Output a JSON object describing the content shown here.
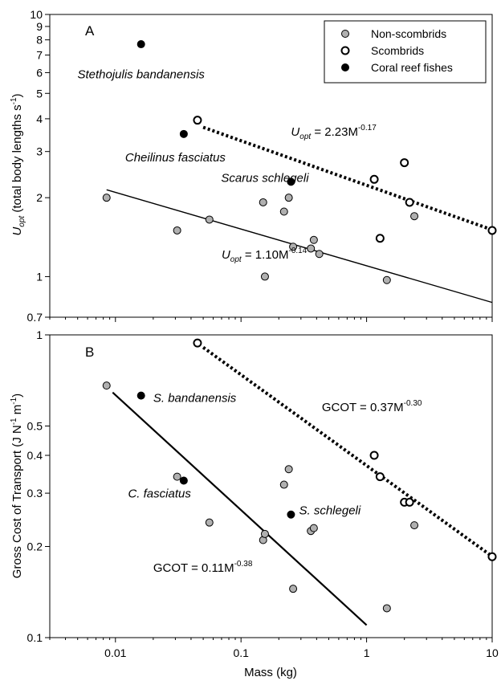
{
  "colors": {
    "non_scombrid_fill": "#b0b0b0",
    "scombrid_fill": "#ffffff",
    "coral_reef_fill": "#000000",
    "marker_stroke": "#000000"
  },
  "chart_data": [
    {
      "panel": "A",
      "type": "scatter",
      "log_x": true,
      "log_y": true,
      "xlim": [
        0.003,
        10
      ],
      "ylim": [
        0.7,
        10
      ],
      "ylabel": {
        "main": "U",
        "sub": "opt",
        "rest": " (total body lengths s",
        "sup": "-1",
        "end": ")"
      },
      "yticks": [
        {
          "v": 0.7,
          "label": "0.7"
        },
        {
          "v": 1,
          "label": "1"
        },
        {
          "v": 2,
          "label": "2"
        },
        {
          "v": 3,
          "label": "3"
        },
        {
          "v": 4,
          "label": "4"
        },
        {
          "v": 5,
          "label": "5"
        },
        {
          "v": 6,
          "label": "6"
        },
        {
          "v": 7,
          "label": "7"
        },
        {
          "v": 8,
          "label": "8"
        },
        {
          "v": 9,
          "label": "9"
        },
        {
          "v": 10,
          "label": "10"
        }
      ],
      "legend": {
        "position": "top-right",
        "entries": [
          {
            "label": "Non-scombrids",
            "group": "non"
          },
          {
            "label": "Scombrids",
            "group": "scom"
          },
          {
            "label": "Coral reef fishes",
            "group": "reef"
          }
        ]
      },
      "series": [
        {
          "name": "Non-scombrids",
          "group": "non",
          "points": [
            [
              0.0085,
              2.0
            ],
            [
              0.031,
              1.5
            ],
            [
              0.056,
              1.65
            ],
            [
              0.15,
              1.92
            ],
            [
              0.155,
              1.0
            ],
            [
              0.22,
              1.77
            ],
            [
              0.24,
              2.0
            ],
            [
              0.26,
              1.3
            ],
            [
              0.36,
              1.28
            ],
            [
              0.38,
              1.38
            ],
            [
              0.42,
              1.22
            ],
            [
              1.45,
              0.97
            ],
            [
              2.4,
              1.7
            ]
          ]
        },
        {
          "name": "Scombrids",
          "group": "scom",
          "points": [
            [
              0.045,
              3.95
            ],
            [
              1.15,
              2.35
            ],
            [
              1.28,
              1.4
            ],
            [
              2.0,
              2.72
            ],
            [
              2.2,
              1.92
            ],
            [
              10.0,
              1.5
            ]
          ]
        },
        {
          "name": "Coral reef fishes",
          "group": "reef",
          "points": [
            [
              0.016,
              7.7
            ],
            [
              0.035,
              3.5
            ],
            [
              0.25,
              2.3
            ]
          ]
        }
      ],
      "fits": [
        {
          "coef": 1.1,
          "exp": -0.14,
          "from": 0.0085,
          "to": 10,
          "style": "solid"
        },
        {
          "coef": 2.23,
          "exp": -0.17,
          "from": 0.05,
          "to": 10,
          "style": "dotted"
        }
      ],
      "annotations": [
        {
          "text": "Stethojulis bandanensis",
          "x": 0.016,
          "y": 5.7,
          "anchor": "middle",
          "kind": "species"
        },
        {
          "text": "Cheilinus fasciatus",
          "x": 0.03,
          "y": 2.75,
          "anchor": "middle",
          "kind": "species"
        },
        {
          "text": "Scarus schlegeli",
          "x": 0.155,
          "y": 2.3,
          "anchor": "middle",
          "kind": "species"
        },
        {
          "prefix": "U",
          "sub": "opt",
          "body": " = 2.23M",
          "sup": "-0.17",
          "x": 0.25,
          "y": 3.45,
          "kind": "eq"
        },
        {
          "prefix": "U",
          "sub": "opt",
          "body": " = 1.10M",
          "sup": "-0.14",
          "x": 0.07,
          "y": 1.17,
          "kind": "eq"
        }
      ],
      "panel_label": "A"
    },
    {
      "panel": "B",
      "type": "scatter",
      "log_x": true,
      "log_y": true,
      "xlim": [
        0.003,
        10
      ],
      "ylim": [
        0.1,
        1
      ],
      "xlabel": "Mass (kg)",
      "ylabel": {
        "main": "Gross Cost of Transport (J N",
        "sup1": "-1",
        "mid": " m",
        "sup2": "-1",
        "end": ")"
      },
      "yticks": [
        {
          "v": 0.1,
          "label": "0.1"
        },
        {
          "v": 0.2,
          "label": "0.2"
        },
        {
          "v": 0.3,
          "label": "0.3"
        },
        {
          "v": 0.4,
          "label": "0.4"
        },
        {
          "v": 0.5,
          "label": "0.5"
        },
        {
          "v": 1,
          "label": "1"
        }
      ],
      "xticks": [
        {
          "v": 0.01,
          "label": "0.01"
        },
        {
          "v": 0.1,
          "label": "0.1"
        },
        {
          "v": 1,
          "label": "1"
        },
        {
          "v": 10,
          "label": "10"
        }
      ],
      "series": [
        {
          "name": "Non-scombrids",
          "group": "non",
          "points": [
            [
              0.0085,
              0.68
            ],
            [
              0.031,
              0.34
            ],
            [
              0.056,
              0.24
            ],
            [
              0.15,
              0.21
            ],
            [
              0.155,
              0.22
            ],
            [
              0.22,
              0.32
            ],
            [
              0.24,
              0.36
            ],
            [
              0.26,
              0.145
            ],
            [
              0.36,
              0.225
            ],
            [
              0.38,
              0.23
            ],
            [
              1.45,
              0.125
            ],
            [
              2.4,
              0.235
            ]
          ]
        },
        {
          "name": "Scombrids",
          "group": "scom",
          "points": [
            [
              0.045,
              0.94
            ],
            [
              1.15,
              0.4
            ],
            [
              1.28,
              0.34
            ],
            [
              2.0,
              0.28
            ],
            [
              2.2,
              0.28
            ],
            [
              10.0,
              0.185
            ]
          ]
        },
        {
          "name": "Coral reef fishes",
          "group": "reef",
          "points": [
            [
              0.016,
              0.63
            ],
            [
              0.035,
              0.33
            ],
            [
              0.25,
              0.255
            ]
          ]
        }
      ],
      "fits": [
        {
          "coef": 0.11,
          "exp": -0.38,
          "from": 0.0095,
          "to": 1.0,
          "style": "solid"
        },
        {
          "coef": 0.37,
          "exp": -0.3,
          "from": 0.05,
          "to": 10,
          "style": "dotted"
        }
      ],
      "annotations": [
        {
          "text": "S. bandanensis",
          "x": 0.02,
          "y": 0.6,
          "anchor": "start",
          "kind": "species"
        },
        {
          "text": "C. fasciatus",
          "x": 0.0126,
          "y": 0.29,
          "anchor": "start",
          "kind": "species"
        },
        {
          "text": "S. schlegeli",
          "x": 0.29,
          "y": 0.255,
          "anchor": "start",
          "kind": "species"
        },
        {
          "prefix": "",
          "sub": "",
          "body": "GCOT = 0.37M",
          "sup": "-0.30",
          "x": 0.44,
          "y": 0.56,
          "kind": "eq"
        },
        {
          "prefix": "",
          "sub": "",
          "body": "GCOT = 0.11M",
          "sup": "-0.38",
          "x": 0.02,
          "y": 0.165,
          "kind": "eq"
        }
      ],
      "panel_label": "B"
    }
  ]
}
